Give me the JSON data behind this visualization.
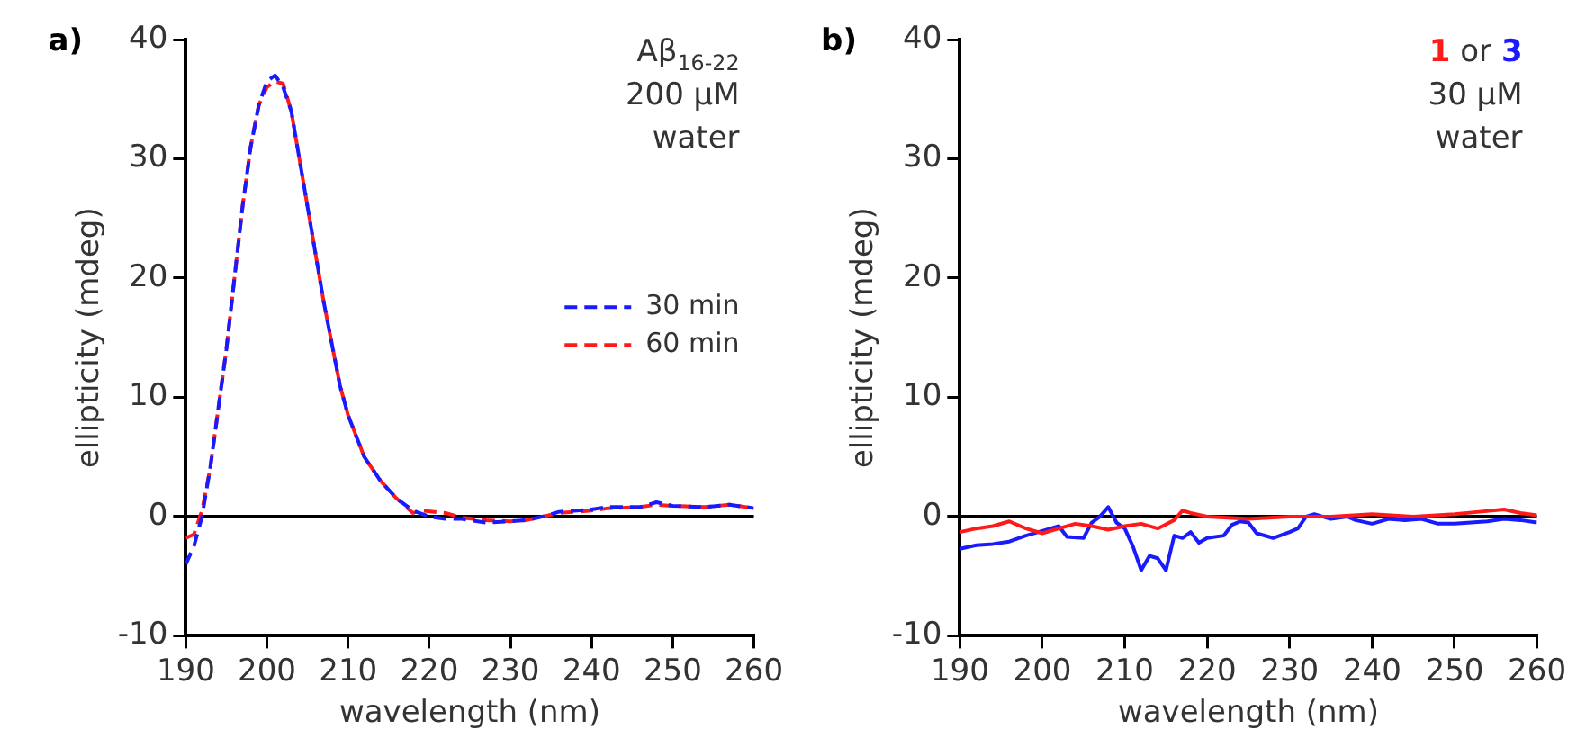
{
  "chart_data": [
    {
      "type": "line",
      "title": "a)",
      "xlabel": "wavelength (nm)",
      "ylabel": "ellipticity (mdeg)",
      "xlim": [
        190,
        260
      ],
      "xticks": [
        190,
        200,
        210,
        220,
        230,
        240,
        250,
        260
      ],
      "ylim": [
        -10,
        40
      ],
      "yticks": [
        -10,
        0,
        10,
        20,
        30,
        40
      ],
      "grid": false,
      "legend": "right",
      "marker": "none",
      "line_style": "dashed",
      "annotations": [
        "Aβ$_{16-22}$",
        "200 μM",
        "water"
      ],
      "ref_lines": [
        {
          "axis": "y",
          "value": 0,
          "color": "#000000"
        }
      ],
      "series": [
        {
          "name": "30 min",
          "color": "#1a1aff",
          "x": [
            190,
            191,
            192,
            193,
            194,
            195,
            196,
            197,
            198,
            199,
            200,
            201,
            202,
            203,
            204,
            205,
            206,
            207,
            208,
            209,
            210,
            212,
            214,
            216,
            218,
            220,
            222,
            224,
            227,
            230,
            232,
            234,
            236,
            240,
            242,
            246,
            248,
            250,
            254,
            257,
            260
          ],
          "values": [
            -4,
            -2.5,
            0,
            4,
            9,
            14,
            20,
            26,
            31,
            34.5,
            36.5,
            37,
            36,
            34,
            30,
            26,
            22,
            18,
            14.5,
            11,
            8.5,
            5,
            3,
            1.5,
            0.5,
            0,
            -0.2,
            -0.2,
            -0.5,
            -0.4,
            -0.3,
            0,
            0.4,
            0.6,
            0.8,
            0.8,
            1.2,
            0.9,
            0.8,
            1,
            0.7
          ]
        },
        {
          "name": "60 min",
          "color": "#ff1a1a",
          "x": [
            190,
            191,
            192,
            193,
            194,
            195,
            196,
            197,
            198,
            199,
            200,
            201,
            202,
            203,
            204,
            205,
            206,
            207,
            208,
            209,
            210,
            212,
            214,
            216,
            218,
            219,
            222,
            224,
            227,
            230,
            232,
            234,
            236,
            240,
            242,
            246,
            248,
            250,
            254,
            257,
            260
          ],
          "values": [
            -1.8,
            -1.5,
            0.5,
            4,
            9,
            14,
            20,
            26,
            31,
            34.5,
            36,
            36.5,
            36.3,
            34,
            30,
            26,
            22,
            18,
            14.5,
            11,
            8.5,
            5,
            3,
            1.5,
            0.3,
            0.5,
            0.3,
            -0.1,
            -0.3,
            -0.4,
            -0.3,
            0,
            0.3,
            0.5,
            0.7,
            0.8,
            1,
            0.9,
            0.8,
            1,
            0.7
          ]
        }
      ]
    },
    {
      "type": "line",
      "title": "b)",
      "xlabel": "wavelength (nm)",
      "ylabel": "ellipticity (mdeg)",
      "xlim": [
        190,
        260
      ],
      "xticks": [
        190,
        200,
        210,
        220,
        230,
        240,
        250,
        260
      ],
      "ylim": [
        -10,
        40
      ],
      "yticks": [
        -10,
        0,
        10,
        20,
        30,
        40
      ],
      "grid": false,
      "marker": "none",
      "line_style": "solid",
      "annotations": [
        "or",
        "30 μM",
        "water"
      ],
      "ref_lines": [
        {
          "axis": "y",
          "value": 0,
          "color": "#000000"
        }
      ],
      "series": [
        {
          "name": "1",
          "color": "#ff1a1a",
          "x": [
            190,
            192,
            194,
            196,
            198,
            200,
            202,
            204,
            206,
            208,
            210,
            212,
            214,
            216,
            217,
            218,
            220,
            225,
            230,
            235,
            240,
            245,
            250,
            253,
            256,
            258,
            260
          ],
          "values": [
            -1.3,
            -1,
            -0.8,
            -0.4,
            -1,
            -1.4,
            -1,
            -0.6,
            -0.8,
            -1.1,
            -0.8,
            -0.6,
            -1,
            -0.3,
            0.5,
            0.3,
            0,
            -0.2,
            0,
            0,
            0.2,
            0,
            0.2,
            0.4,
            0.6,
            0.3,
            0.1
          ]
        },
        {
          "name": "3",
          "color": "#1a1aff",
          "x": [
            190,
            192,
            194,
            196,
            198,
            200,
            202,
            203,
            205,
            206,
            207,
            208,
            209,
            210,
            211,
            212,
            213,
            214,
            215,
            216,
            217,
            218,
            219,
            220,
            222,
            223,
            224,
            225,
            226,
            228,
            230,
            231,
            232,
            233,
            235,
            237,
            238,
            240,
            242,
            244,
            246,
            248,
            250,
            254,
            256,
            258,
            260
          ],
          "values": [
            -2.7,
            -2.4,
            -2.3,
            -2.1,
            -1.6,
            -1.2,
            -0.8,
            -1.7,
            -1.8,
            -0.5,
            0,
            0.8,
            -0.5,
            -1,
            -2.5,
            -4.5,
            -3.3,
            -3.5,
            -4.5,
            -1.6,
            -1.8,
            -1.3,
            -2.2,
            -1.8,
            -1.6,
            -0.7,
            -0.4,
            -0.5,
            -1.4,
            -1.8,
            -1.3,
            -1,
            0,
            0.2,
            -0.2,
            0,
            -0.3,
            -0.6,
            -0.2,
            -0.3,
            -0.2,
            -0.6,
            -0.6,
            -0.4,
            -0.2,
            -0.3,
            -0.5
          ]
        }
      ]
    }
  ]
}
